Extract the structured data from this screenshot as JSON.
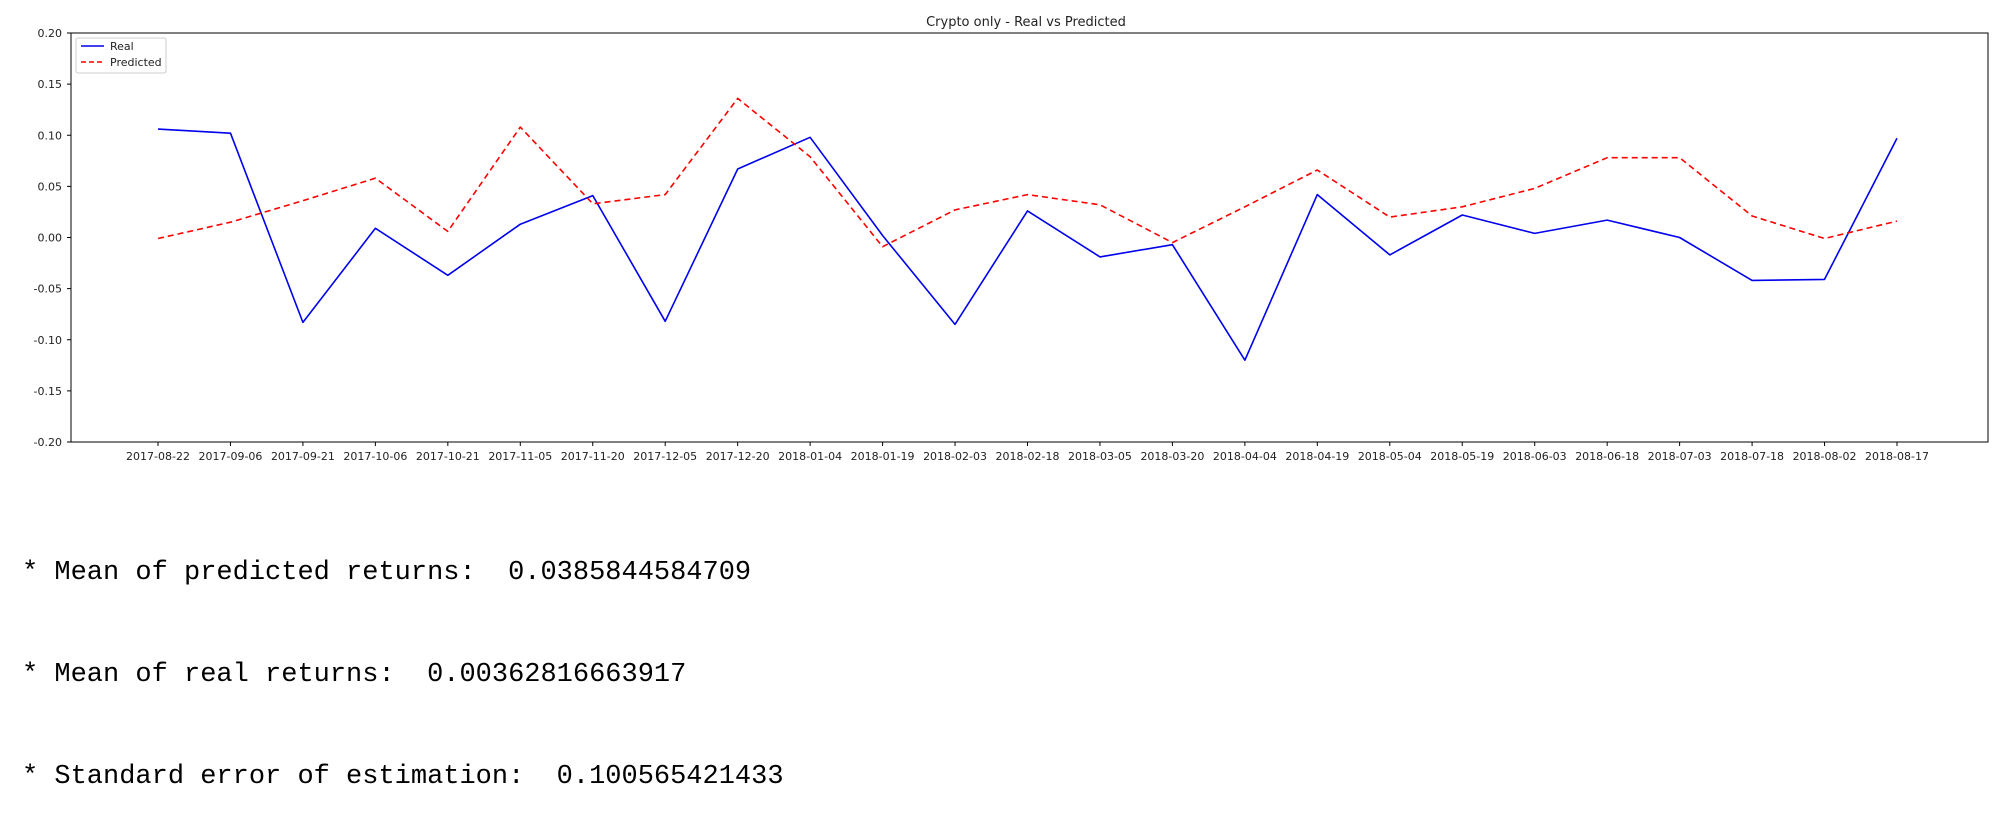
{
  "chart_data": {
    "type": "line",
    "title": "Crypto only - Real vs Predicted",
    "xlabel": "",
    "ylabel": "",
    "ylim": [
      -0.2,
      0.2
    ],
    "yticks": [
      "0.20",
      "0.15",
      "0.10",
      "0.05",
      "0.00",
      "-0.05",
      "-0.10",
      "-0.15",
      "-0.20"
    ],
    "ytick_values": [
      0.2,
      0.15,
      0.1,
      0.05,
      0.0,
      -0.05,
      -0.1,
      -0.15,
      -0.2
    ],
    "categories": [
      "2017-08-22",
      "2017-09-06",
      "2017-09-21",
      "2017-10-06",
      "2017-10-21",
      "2017-11-05",
      "2017-11-20",
      "2017-12-05",
      "2017-12-20",
      "2018-01-04",
      "2018-01-19",
      "2018-02-03",
      "2018-02-18",
      "2018-03-05",
      "2018-03-20",
      "2018-04-04",
      "2018-04-19",
      "2018-05-04",
      "2018-05-19",
      "2018-06-03",
      "2018-06-18",
      "2018-07-03",
      "2018-07-18",
      "2018-08-02",
      "2018-08-17"
    ],
    "grid": false,
    "legend_position": "top-left",
    "series": [
      {
        "name": "Real",
        "color": "#0000ee",
        "style": "solid",
        "values": [
          0.106,
          0.102,
          -0.083,
          0.009,
          -0.037,
          0.013,
          0.041,
          -0.082,
          0.067,
          0.098,
          0.002,
          -0.085,
          0.026,
          -0.019,
          -0.007,
          -0.12,
          0.042,
          -0.017,
          0.022,
          0.004,
          0.017,
          0.0,
          -0.042,
          -0.041,
          0.097
        ]
      },
      {
        "name": "Predicted",
        "color": "#ff0000",
        "style": "dashed",
        "values": [
          -0.001,
          0.015,
          0.036,
          0.058,
          0.006,
          0.108,
          0.033,
          0.042,
          0.136,
          0.079,
          -0.009,
          0.027,
          0.042,
          0.032,
          -0.005,
          0.03,
          0.066,
          0.02,
          0.03,
          0.048,
          0.078,
          0.078,
          0.021,
          -0.001,
          0.016
        ]
      }
    ]
  },
  "stats": {
    "line1": "* Mean of predicted returns:  0.0385844584709",
    "line2": "* Mean of real returns:  0.00362816663917",
    "line3": "* Standard error of estimation:  0.100565421433"
  }
}
